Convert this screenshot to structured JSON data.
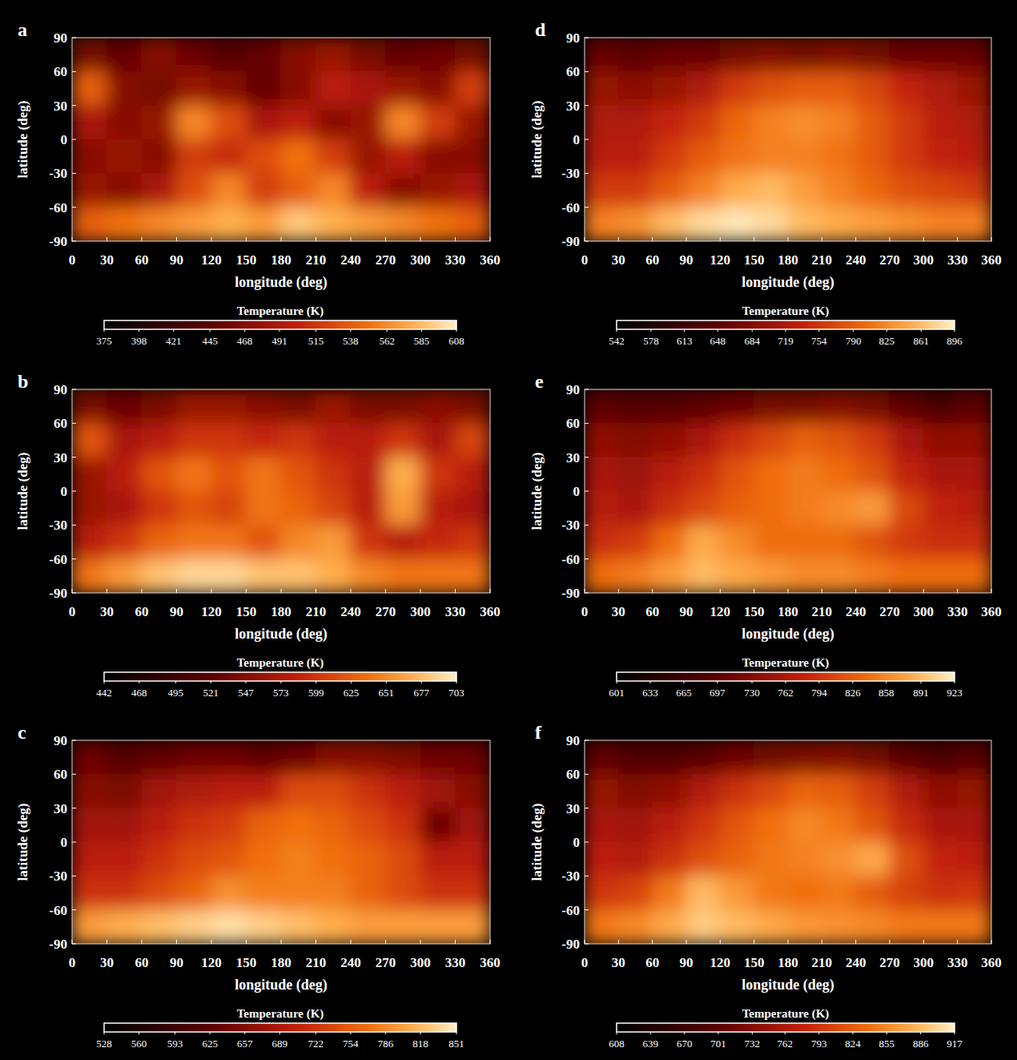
{
  "chart_data": [
    {
      "type": "heatmap",
      "panel": "a",
      "x_label": "longitude (deg)",
      "y_label": "latitude (deg)",
      "xlim": [
        0,
        360
      ],
      "xticks": [
        0,
        30,
        60,
        90,
        120,
        150,
        180,
        210,
        240,
        270,
        300,
        330,
        360
      ],
      "ylim": [
        -90,
        90
      ],
      "yticks": [
        90,
        60,
        30,
        0,
        -30,
        -60,
        -90
      ],
      "x": [
        15,
        45,
        75,
        105,
        135,
        165,
        195,
        225,
        255,
        285,
        315,
        345
      ],
      "y": [
        75,
        45,
        15,
        -15,
        -45,
        -75
      ],
      "values": [
        [
          460,
          450,
          470,
          455,
          440,
          450,
          470,
          480,
          460,
          450,
          455,
          460
        ],
        [
          540,
          470,
          460,
          480,
          470,
          450,
          470,
          500,
          490,
          480,
          470,
          520
        ],
        [
          490,
          470,
          480,
          560,
          530,
          490,
          500,
          470,
          480,
          560,
          520,
          480
        ],
        [
          470,
          480,
          470,
          520,
          510,
          530,
          550,
          520,
          480,
          500,
          470,
          470
        ],
        [
          480,
          470,
          490,
          530,
          560,
          520,
          540,
          560,
          500,
          470,
          480,
          490
        ],
        [
          540,
          550,
          560,
          570,
          580,
          570,
          590,
          580,
          570,
          560,
          550,
          540
        ]
      ],
      "colorbar": {
        "label": "Temperature (K)",
        "range": [
          375,
          608
        ],
        "ticks": [
          375,
          398,
          421,
          445,
          468,
          491,
          515,
          538,
          562,
          585,
          608
        ]
      }
    },
    {
      "type": "heatmap",
      "panel": "b",
      "x_label": "longitude (deg)",
      "y_label": "latitude (deg)",
      "xlim": [
        0,
        360
      ],
      "xticks": [
        0,
        30,
        60,
        90,
        120,
        150,
        180,
        210,
        240,
        270,
        300,
        330,
        360
      ],
      "ylim": [
        -90,
        90
      ],
      "yticks": [
        90,
        60,
        30,
        0,
        -30,
        -60,
        -90
      ],
      "x": [
        15,
        45,
        75,
        105,
        135,
        165,
        195,
        225,
        255,
        285,
        315,
        345
      ],
      "y": [
        75,
        45,
        15,
        -15,
        -45,
        -75
      ],
      "values": [
        [
          540,
          530,
          540,
          560,
          560,
          550,
          540,
          560,
          540,
          540,
          550,
          540
        ],
        [
          620,
          570,
          580,
          600,
          600,
          590,
          600,
          580,
          580,
          600,
          570,
          610
        ],
        [
          560,
          580,
          620,
          640,
          620,
          640,
          620,
          600,
          580,
          670,
          600,
          580
        ],
        [
          560,
          570,
          600,
          620,
          610,
          640,
          630,
          610,
          580,
          660,
          580,
          570
        ],
        [
          580,
          600,
          630,
          640,
          640,
          620,
          650,
          660,
          600,
          580,
          590,
          600
        ],
        [
          640,
          660,
          680,
          690,
          690,
          680,
          680,
          670,
          650,
          640,
          640,
          640
        ]
      ],
      "colorbar": {
        "label": "Temperature (K)",
        "range": [
          442,
          703
        ],
        "ticks": [
          442,
          468,
          495,
          521,
          547,
          573,
          599,
          625,
          651,
          677,
          703
        ]
      }
    },
    {
      "type": "heatmap",
      "panel": "c",
      "x_label": "longitude (deg)",
      "y_label": "latitude (deg)",
      "xlim": [
        0,
        360
      ],
      "xticks": [
        0,
        30,
        60,
        90,
        120,
        150,
        180,
        210,
        240,
        270,
        300,
        330,
        360
      ],
      "ylim": [
        -90,
        90
      ],
      "yticks": [
        90,
        60,
        30,
        0,
        -30,
        -60,
        -90
      ],
      "x": [
        15,
        45,
        75,
        105,
        135,
        165,
        195,
        225,
        255,
        285,
        315,
        345
      ],
      "y": [
        75,
        45,
        15,
        -15,
        -45,
        -75
      ],
      "values": [
        [
          640,
          620,
          630,
          640,
          640,
          630,
          640,
          660,
          660,
          650,
          640,
          640
        ],
        [
          660,
          650,
          680,
          690,
          700,
          700,
          740,
          740,
          720,
          700,
          680,
          660
        ],
        [
          680,
          680,
          700,
          720,
          730,
          760,
          770,
          760,
          740,
          720,
          640,
          680
        ],
        [
          700,
          700,
          720,
          740,
          750,
          770,
          780,
          770,
          760,
          740,
          700,
          700
        ],
        [
          720,
          720,
          740,
          760,
          790,
          780,
          780,
          780,
          760,
          740,
          720,
          720
        ],
        [
          800,
          810,
          820,
          830,
          840,
          830,
          820,
          810,
          800,
          800,
          800,
          800
        ]
      ],
      "colorbar": {
        "label": "Temperature (K)",
        "range": [
          528,
          851
        ],
        "ticks": [
          528,
          560,
          593,
          625,
          657,
          689,
          722,
          754,
          786,
          818,
          851
        ]
      }
    },
    {
      "type": "heatmap",
      "panel": "d",
      "x_label": "longitude (deg)",
      "y_label": "latitude (deg)",
      "xlim": [
        0,
        360
      ],
      "xticks": [
        0,
        30,
        60,
        90,
        120,
        150,
        180,
        210,
        240,
        270,
        300,
        330,
        360
      ],
      "ylim": [
        -90,
        90
      ],
      "yticks": [
        90,
        60,
        30,
        0,
        -30,
        -60,
        -90
      ],
      "x": [
        15,
        45,
        75,
        105,
        135,
        165,
        195,
        225,
        255,
        285,
        315,
        345
      ],
      "y": [
        75,
        45,
        15,
        -15,
        -45,
        -75
      ],
      "values": [
        [
          660,
          650,
          660,
          660,
          670,
          680,
          670,
          680,
          670,
          660,
          660,
          660
        ],
        [
          700,
          690,
          700,
          720,
          760,
          780,
          790,
          790,
          770,
          740,
          720,
          700
        ],
        [
          720,
          720,
          740,
          760,
          800,
          820,
          830,
          820,
          790,
          760,
          730,
          720
        ],
        [
          730,
          730,
          760,
          790,
          810,
          820,
          820,
          810,
          790,
          760,
          740,
          730
        ],
        [
          760,
          760,
          790,
          820,
          850,
          860,
          840,
          820,
          800,
          780,
          770,
          760
        ],
        [
          820,
          830,
          860,
          880,
          890,
          880,
          860,
          850,
          840,
          830,
          820,
          820
        ]
      ],
      "colorbar": {
        "label": "Temperature (K)",
        "range": [
          542,
          896
        ],
        "ticks": [
          542,
          578,
          613,
          648,
          684,
          719,
          754,
          790,
          825,
          861,
          896
        ]
      }
    },
    {
      "type": "heatmap",
      "panel": "e",
      "x_label": "longitude (deg)",
      "y_label": "latitude (deg)",
      "xlim": [
        0,
        360
      ],
      "xticks": [
        0,
        30,
        60,
        90,
        120,
        150,
        180,
        210,
        240,
        270,
        300,
        330,
        360
      ],
      "ylim": [
        -90,
        90
      ],
      "yticks": [
        90,
        60,
        30,
        0,
        -30,
        -60,
        -90
      ],
      "x": [
        15,
        45,
        75,
        105,
        135,
        165,
        195,
        225,
        255,
        285,
        315,
        345
      ],
      "y": [
        75,
        45,
        15,
        -15,
        -45,
        -75
      ],
      "values": [
        [
          700,
          690,
          690,
          700,
          710,
          720,
          720,
          730,
          720,
          700,
          680,
          700
        ],
        [
          740,
          730,
          740,
          760,
          790,
          810,
          830,
          820,
          800,
          760,
          740,
          740
        ],
        [
          760,
          750,
          770,
          790,
          820,
          840,
          850,
          840,
          820,
          780,
          760,
          760
        ],
        [
          770,
          760,
          790,
          810,
          830,
          840,
          850,
          860,
          870,
          810,
          780,
          770
        ],
        [
          790,
          800,
          840,
          880,
          860,
          840,
          840,
          840,
          820,
          800,
          790,
          790
        ],
        [
          840,
          850,
          870,
          890,
          880,
          870,
          860,
          860,
          850,
          840,
          840,
          840
        ]
      ],
      "colorbar": {
        "label": "Temperature (K)",
        "range": [
          601,
          923
        ],
        "ticks": [
          601,
          633,
          665,
          697,
          730,
          762,
          794,
          826,
          858,
          891,
          923
        ]
      }
    },
    {
      "type": "heatmap",
      "panel": "f",
      "x_label": "longitude (deg)",
      "y_label": "latitude (deg)",
      "xlim": [
        0,
        360
      ],
      "xticks": [
        0,
        30,
        60,
        90,
        120,
        150,
        180,
        210,
        240,
        270,
        300,
        330,
        360
      ],
      "ylim": [
        -90,
        90
      ],
      "yticks": [
        90,
        60,
        30,
        0,
        -30,
        -60,
        -90
      ],
      "x": [
        15,
        45,
        75,
        105,
        135,
        165,
        195,
        225,
        255,
        285,
        315,
        345
      ],
      "y": [
        75,
        45,
        15,
        -15,
        -45,
        -75
      ],
      "values": [
        [
          705,
          690,
          690,
          700,
          715,
          720,
          725,
          730,
          720,
          700,
          685,
          700
        ],
        [
          745,
          730,
          740,
          765,
          790,
          810,
          830,
          825,
          800,
          765,
          740,
          745
        ],
        [
          760,
          755,
          770,
          795,
          820,
          840,
          855,
          845,
          820,
          785,
          760,
          760
        ],
        [
          775,
          765,
          790,
          815,
          830,
          845,
          850,
          860,
          875,
          815,
          780,
          775
        ],
        [
          795,
          805,
          845,
          885,
          865,
          845,
          840,
          845,
          825,
          805,
          790,
          795
        ],
        [
          845,
          855,
          875,
          895,
          885,
          875,
          865,
          860,
          855,
          845,
          845,
          845
        ]
      ],
      "colorbar": {
        "label": "Temperature (K)",
        "range": [
          608,
          917
        ],
        "ticks": [
          608,
          639,
          670,
          701,
          732,
          762,
          793,
          824,
          855,
          886,
          917
        ]
      }
    }
  ]
}
